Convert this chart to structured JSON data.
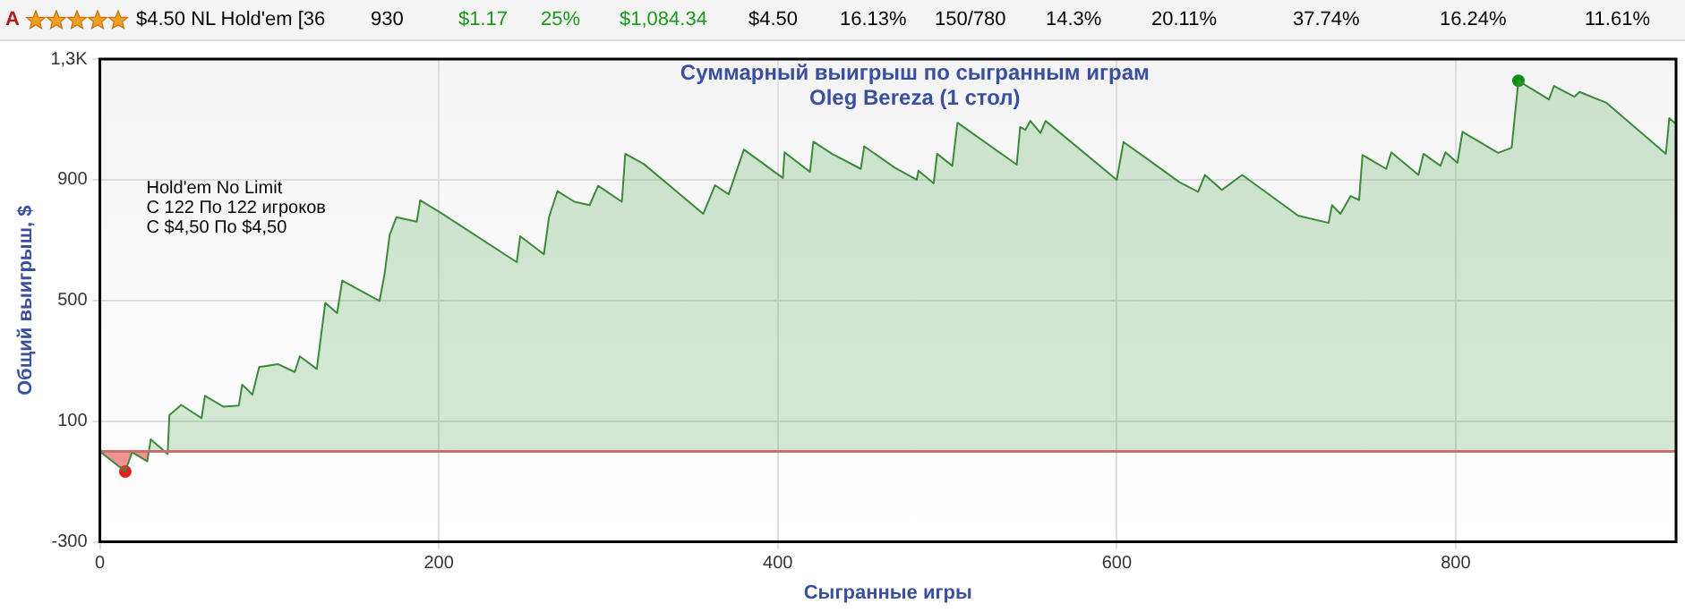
{
  "chart_data": {
    "type": "area",
    "title": "Суммарный выигрыш по сыгранным играм",
    "subtitle": "Oleg Bereza (1 стол)",
    "xlabel": "Сыгранные игры",
    "ylabel": "Общий выигрыш, $",
    "annotations": [
      "Hold'em No Limit",
      "С 122 По 122 игроков",
      "С $4,50 По $4,50",
      "A",
      "$4.50 NL Hold'em [36",
      "930",
      "$1.17",
      "25%",
      "$1,084.34",
      "$4.50",
      "16.13%",
      "150/780",
      "14.3%",
      "20.11%",
      "37.74%",
      "16.24%",
      "11.61%"
    ],
    "series": [
      {
        "color": "#3a8a3a",
        "x": [
          0,
          15,
          19,
          28,
          30,
          40,
          41,
          48,
          60,
          62,
          73,
          82,
          84,
          90,
          94,
          105,
          115,
          118,
          128,
          133,
          140,
          143,
          165,
          168,
          171,
          175,
          187,
          189,
          201,
          246,
          248,
          262,
          265,
          270,
          280,
          289,
          294,
          308,
          310,
          321,
          356,
          363,
          371,
          380,
          403,
          404,
          419,
          421,
          432,
          449,
          451,
          469,
          482,
          483,
          492,
          494,
          503,
          506,
          541,
          543,
          546,
          549,
          555,
          558,
          600,
          604,
          637,
          648,
          652,
          662,
          674,
          707,
          725,
          727,
          732,
          738,
          743,
          745,
          759,
          762,
          778,
          781,
          791,
          794,
          801,
          804,
          825,
          833,
          837,
          855,
          858,
          870,
          873,
          889,
          924,
          926,
          930
        ],
        "values": [
          0,
          -67,
          -3,
          -33,
          40,
          -9,
          120,
          154,
          110,
          184,
          148,
          152,
          221,
          188,
          279,
          289,
          263,
          315,
          273,
          492,
          458,
          566,
          498,
          588,
          717,
          776,
          761,
          832,
          791,
          627,
          713,
          653,
          776,
          862,
          827,
          816,
          880,
          827,
          986,
          952,
          787,
          882,
          852,
          1000,
          906,
          991,
          926,
          1026,
          986,
          936,
          1011,
          940,
          900,
          930,
          888,
          986,
          946,
          1089,
          950,
          1075,
          1065,
          1095,
          1055,
          1095,
          900,
          1025,
          892,
          860,
          916,
          866,
          916,
          781,
          757,
          816,
          787,
          846,
          833,
          982,
          936,
          991,
          916,
          986,
          946,
          991,
          956,
          1059,
          989,
          1006,
          1228,
          1166,
          1211,
          1175,
          1191,
          1155,
          986,
          1104,
          1084
        ]
      },
      {
        "type": "scatter",
        "x": [
          15,
          837
        ],
        "values": [
          -67,
          1228
        ],
        "colors": [
          "#e02020",
          "#109010"
        ]
      }
    ],
    "xlim": [
      0,
      930
    ],
    "xticks": [
      0,
      200,
      400,
      600,
      800
    ],
    "ylim": [
      -300,
      1300
    ],
    "yticks": [
      -300,
      100,
      500,
      900,
      {
        "value": 1300,
        "label": "1,3K"
      }
    ],
    "ref_lines": [
      {
        "axis": "y",
        "value": 0,
        "color": "#c87070"
      }
    ],
    "grid": true,
    "legend": false
  }
}
